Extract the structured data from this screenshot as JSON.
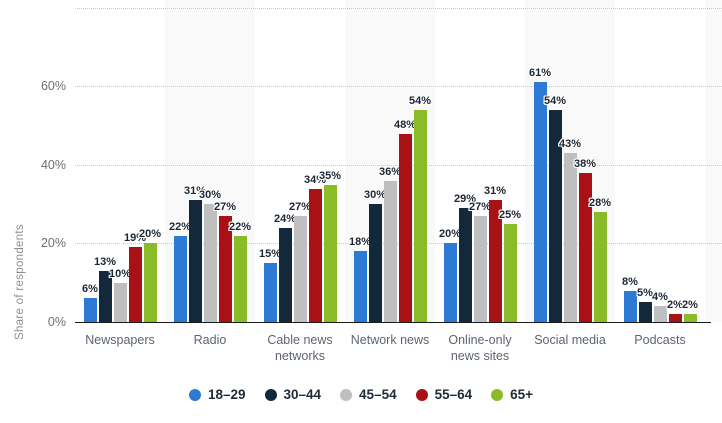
{
  "chart_data": {
    "type": "bar",
    "title": "",
    "ylabel": "Share of respondents",
    "value_suffix": "%",
    "categories": [
      "Newspapers",
      "Radio",
      "Cable news networks",
      "Network news",
      "Online-only news sites",
      "Social media",
      "Podcasts"
    ],
    "series": [
      {
        "name": "18–29",
        "color": "#2d7ad4",
        "values": [
          6,
          22,
          15,
          18,
          20,
          61,
          8
        ]
      },
      {
        "name": "30–44",
        "color": "#14283c",
        "values": [
          13,
          31,
          24,
          30,
          29,
          54,
          5
        ]
      },
      {
        "name": "45–54",
        "color": "#bfbfbf",
        "values": [
          10,
          30,
          27,
          36,
          27,
          43,
          4
        ]
      },
      {
        "name": "55–64",
        "color": "#a81115",
        "values": [
          19,
          27,
          34,
          48,
          31,
          38,
          2
        ]
      },
      {
        "name": "65+",
        "color": "#8abc29",
        "values": [
          20,
          22,
          35,
          54,
          25,
          28,
          2
        ]
      }
    ],
    "ylim": [
      0,
      80
    ],
    "yticks": [
      0,
      20,
      40,
      60
    ],
    "ytick_suffix": "%",
    "gridlines": [
      20,
      40,
      60,
      80
    ],
    "grid_style": "dotted",
    "legend_position": "bottom",
    "band_colors": {
      "even": "#ffffff",
      "odd": "#f9f9f9"
    }
  }
}
